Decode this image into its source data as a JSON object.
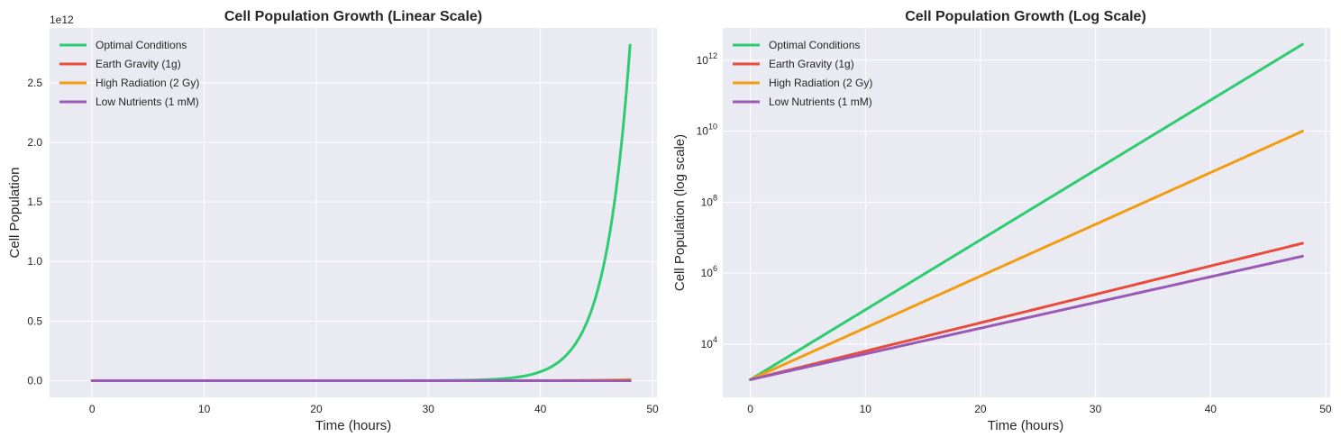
{
  "colors": {
    "background": "#ffffff",
    "axes_face": "#eaeaf2",
    "grid": "#ffffff",
    "text": "#262626"
  },
  "chart_data": [
    {
      "type": "line",
      "title": "Cell Population Growth (Linear Scale)",
      "xlabel": "Time (hours)",
      "ylabel": "Cell Population",
      "y_offset_label": "1e12",
      "xlim": [
        -3.8,
        50.4
      ],
      "ylim": [
        -0.14,
        2.96
      ],
      "y_unit_scale": 1000000000000.0,
      "xticks": [
        0,
        10,
        20,
        30,
        40,
        50
      ],
      "xtick_labels": [
        "0",
        "10",
        "20",
        "30",
        "40",
        "50"
      ],
      "yticks": [
        0.0,
        0.5,
        1.0,
        1.5,
        2.0,
        2.5
      ],
      "ytick_labels": [
        "0.0",
        "0.5",
        "1.0",
        "1.5",
        "2.0",
        "2.5"
      ],
      "grid": true,
      "legend_position": "top-left",
      "x": [
        0,
        48
      ],
      "series": [
        {
          "name": "Optimal Conditions",
          "color": "#2ecc71",
          "initial": 1000,
          "rate_per_hour": 0.4533
        },
        {
          "name": "Earth Gravity (1g)",
          "color": "#e74c3c",
          "initial": 1000,
          "rate_per_hour": 0.1843
        },
        {
          "name": "High Radiation (2 Gy)",
          "color": "#f39c12",
          "initial": 1000,
          "rate_per_hour": 0.3358
        },
        {
          "name": "Low Nutrients (1 mM)",
          "color": "#9b59b6",
          "initial": 1000,
          "rate_per_hour": 0.1668
        }
      ],
      "end_values": [
        2800000000000.0,
        7000000.0,
        10000000000.0,
        3000000.0
      ]
    },
    {
      "type": "line",
      "title": "Cell Population Growth (Log Scale)",
      "xlabel": "Time (hours)",
      "ylabel": "Cell Population (log scale)",
      "yscale": "log",
      "xlim": [
        -2.4,
        50.4
      ],
      "ylim_log10": [
        2.5,
        12.91
      ],
      "xticks": [
        0,
        10,
        20,
        30,
        40,
        50
      ],
      "xtick_labels": [
        "0",
        "10",
        "20",
        "30",
        "40",
        "50"
      ],
      "yticks_log10": [
        4,
        6,
        8,
        10,
        12
      ],
      "ytick_labels": [
        {
          "base": "10",
          "exp": "4"
        },
        {
          "base": "10",
          "exp": "6"
        },
        {
          "base": "10",
          "exp": "8"
        },
        {
          "base": "10",
          "exp": "10"
        },
        {
          "base": "10",
          "exp": "12"
        }
      ],
      "grid": true,
      "legend_position": "top-left",
      "x": [
        0,
        48
      ],
      "series": [
        {
          "name": "Optimal Conditions",
          "color": "#2ecc71",
          "initial": 1000,
          "rate_per_hour": 0.4533
        },
        {
          "name": "Earth Gravity (1g)",
          "color": "#e74c3c",
          "initial": 1000,
          "rate_per_hour": 0.1843
        },
        {
          "name": "High Radiation (2 Gy)",
          "color": "#f39c12",
          "initial": 1000,
          "rate_per_hour": 0.3358
        },
        {
          "name": "Low Nutrients (1 mM)",
          "color": "#9b59b6",
          "initial": 1000,
          "rate_per_hour": 0.1668
        }
      ],
      "end_values": [
        2800000000000.0,
        7000000.0,
        10000000000.0,
        3000000.0
      ]
    }
  ]
}
